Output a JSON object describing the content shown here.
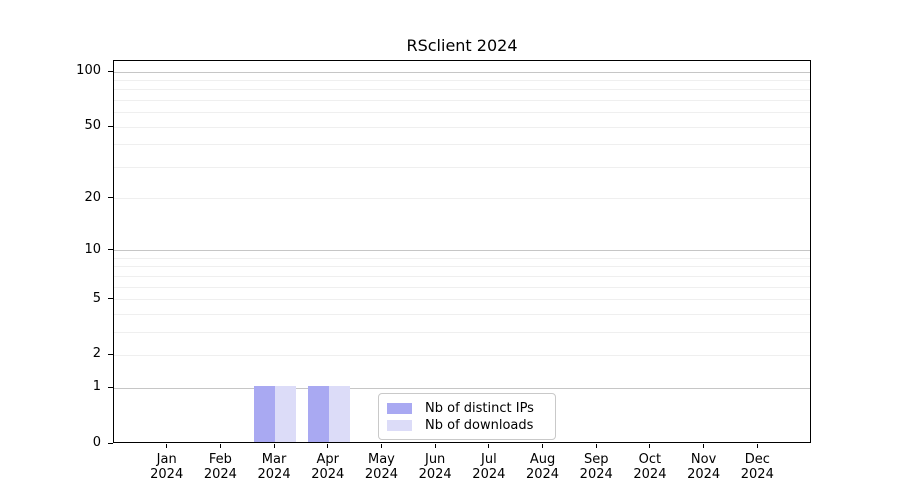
{
  "chart_data": {
    "type": "bar",
    "title": "RSclient 2024",
    "categories": [
      {
        "month": "Jan",
        "year": "2024"
      },
      {
        "month": "Feb",
        "year": "2024"
      },
      {
        "month": "Mar",
        "year": "2024"
      },
      {
        "month": "Apr",
        "year": "2024"
      },
      {
        "month": "May",
        "year": "2024"
      },
      {
        "month": "Jun",
        "year": "2024"
      },
      {
        "month": "Jul",
        "year": "2024"
      },
      {
        "month": "Aug",
        "year": "2024"
      },
      {
        "month": "Sep",
        "year": "2024"
      },
      {
        "month": "Oct",
        "year": "2024"
      },
      {
        "month": "Nov",
        "year": "2024"
      },
      {
        "month": "Dec",
        "year": "2024"
      }
    ],
    "series": [
      {
        "name": "Nb of distinct IPs",
        "color": "#a9a9f2",
        "values": [
          0,
          0,
          1,
          1,
          0,
          0,
          0,
          0,
          0,
          0,
          0,
          0
        ]
      },
      {
        "name": "Nb of downloads",
        "color": "#dcdcf8",
        "values": [
          0,
          0,
          1,
          1,
          0,
          0,
          0,
          0,
          0,
          0,
          0,
          0
        ]
      }
    ],
    "y_axis": {
      "ticks": [
        0,
        1,
        2,
        5,
        10,
        20,
        50,
        100
      ],
      "minor_ticks": [
        3,
        4,
        6,
        7,
        8,
        9,
        30,
        40,
        60,
        70,
        80,
        90
      ],
      "decade_ticks": [
        1,
        10,
        100
      ],
      "scale": "log1p",
      "max": 115
    },
    "xlabel": "",
    "ylabel": "",
    "grid": "horizontal",
    "legend_position": "bottom-center",
    "colors": {
      "axis": "#000000",
      "major_grid": "#c6c6c6",
      "minor_grid": "#efefef",
      "background": "#ffffff"
    }
  }
}
